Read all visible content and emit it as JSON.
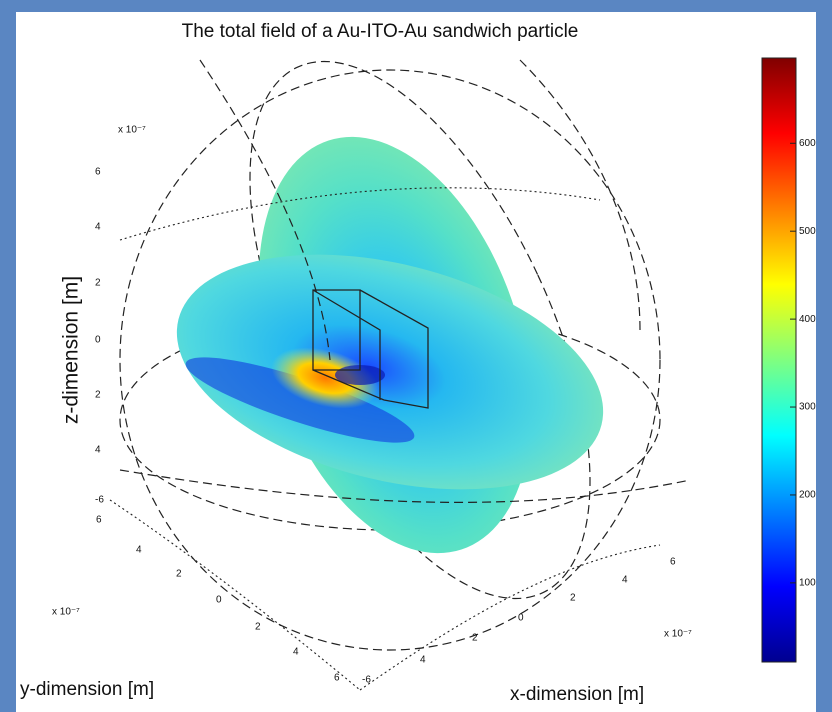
{
  "chart_data": {
    "type": "field3d",
    "title": "The total field of a Au-ITO-Au sandwich particle",
    "xlabel": "x-dimension [m]",
    "ylabel": "y-dimension [m]",
    "zlabel": "z-dimension [m]",
    "axis_scale_labels": [
      "x 10⁻⁷",
      "x 10⁻⁷",
      "x 10⁻⁷"
    ],
    "z_tick_labels": [
      "6",
      "4",
      "2",
      "0",
      "2",
      "4",
      "-6"
    ],
    "y_tick_labels": [
      "6",
      "4",
      "2",
      "0",
      "2",
      "4",
      "6"
    ],
    "x_tick_labels": [
      "-6",
      "4",
      "2",
      "0",
      "2",
      "4",
      "6"
    ],
    "colorbar": {
      "colormap": "jet",
      "clim": [
        10,
        697
      ],
      "ticks": [
        100,
        200,
        300,
        400,
        500,
        600
      ]
    }
  }
}
